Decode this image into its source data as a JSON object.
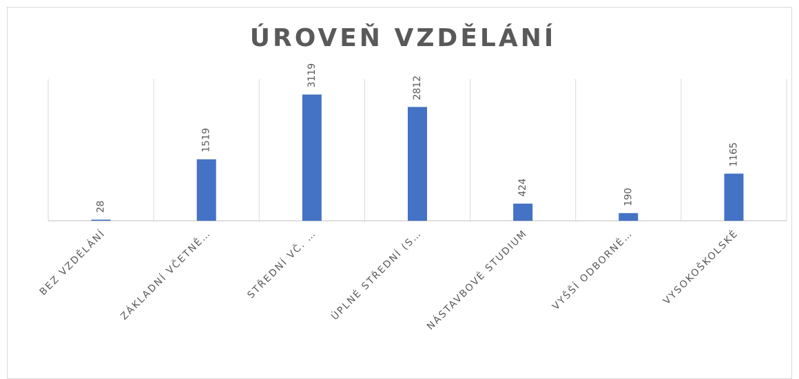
{
  "chart_data": {
    "type": "bar",
    "title": "ÚROVEŇ VZDĚLÁNÍ",
    "categories": [
      "BEZ VZDĚLÁNÍ",
      "ZÁKLADNÍ VČETNĚ…",
      "STŘEDNÍ VČ. …",
      "ÚPLNÉ STŘEDNÍ (S…",
      "NÁSTAVBOVÉ STUDIUM",
      "VYŠŠÍ ODBORNÉ…",
      "VYSOKOŠKOLSKÉ"
    ],
    "values": [
      28,
      1519,
      3119,
      2812,
      424,
      190,
      1165
    ],
    "color": "#4472c4",
    "ylim": [
      0,
      3500
    ]
  }
}
